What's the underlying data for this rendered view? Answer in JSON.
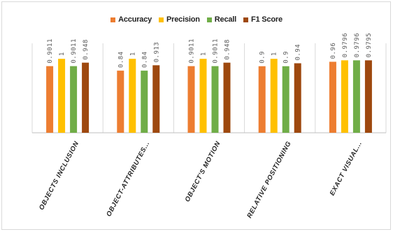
{
  "chart_data": {
    "type": "bar",
    "title": "",
    "xlabel": "",
    "ylabel": "",
    "ylim": [
      0,
      1.2
    ],
    "grid": false,
    "legend_position": "top",
    "categories": [
      "OBJECTS INCLUSION",
      "OBJECT-ATTRIBUTES...",
      "OBJECT'S MOTION",
      "RELATIVE POSITIONING",
      "EXACT VISUAL..."
    ],
    "series": [
      {
        "name": "Accuracy",
        "color": "#ed7d31",
        "values": [
          0.9011,
          0.84,
          0.9011,
          0.9,
          0.96
        ],
        "labels": [
          "0.9011",
          "0.84",
          "0.9011",
          "0.9",
          "0.96"
        ]
      },
      {
        "name": "Precision",
        "color": "#ffc000",
        "values": [
          1,
          1,
          1,
          1,
          0.9796
        ],
        "labels": [
          "1",
          "1",
          "1",
          "1",
          "0.9796"
        ]
      },
      {
        "name": "Recall",
        "color": "#70ad47",
        "values": [
          0.9011,
          0.84,
          0.9011,
          0.9,
          0.9796
        ],
        "labels": [
          "0.9011",
          "0.84",
          "0.9011",
          "0.9",
          "0.9796"
        ]
      },
      {
        "name": "F1 Score",
        "color": "#9e480e",
        "values": [
          0.948,
          0.913,
          0.948,
          0.94,
          0.9795
        ],
        "labels": [
          "0.948",
          "0.913",
          "0.948",
          "0.94",
          "0.9795"
        ]
      }
    ]
  }
}
